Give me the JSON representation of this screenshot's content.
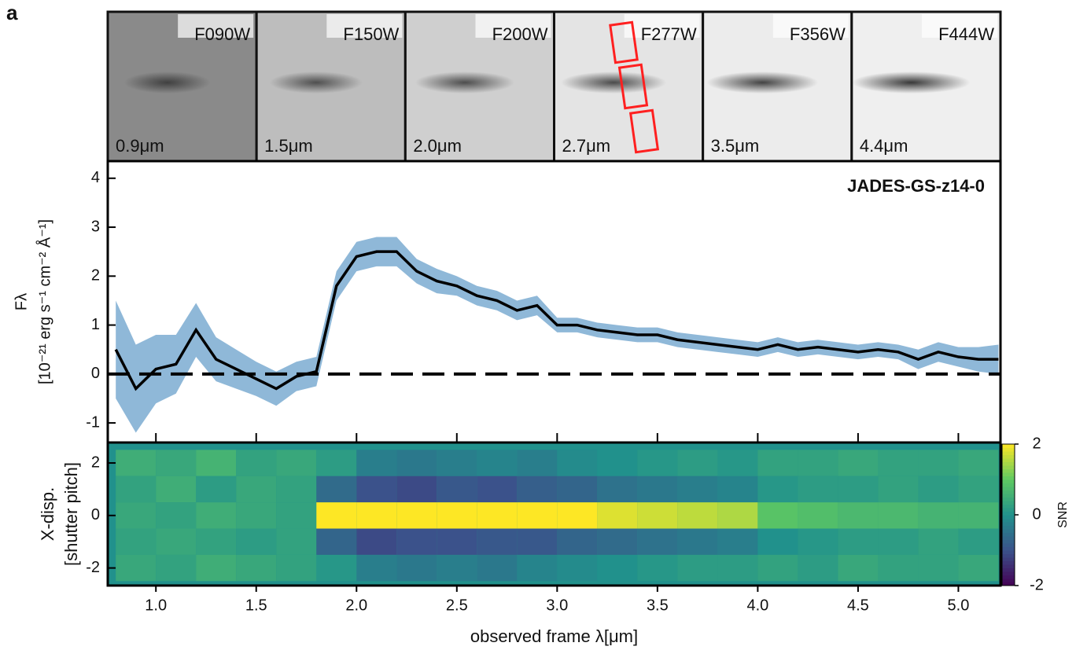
{
  "panel_label": "a",
  "images": [
    {
      "filter": "F090W",
      "wavelength": "0.9μm"
    },
    {
      "filter": "F150W",
      "wavelength": "1.5μm"
    },
    {
      "filter": "F200W",
      "wavelength": "2.0μm"
    },
    {
      "filter": "F277W",
      "wavelength": "2.7μm"
    },
    {
      "filter": "F356W",
      "wavelength": "3.5μm"
    },
    {
      "filter": "F444W",
      "wavelength": "4.4μm"
    }
  ],
  "chart_data": [
    {
      "type": "line",
      "title": "JADES-GS-z14-0",
      "ylabel": [
        "Fλ",
        "[10⁻²¹ erg s⁻¹ cm⁻² Å⁻¹]"
      ],
      "xlim": [
        0.76,
        5.21
      ],
      "ylim": [
        -1.4,
        4.35
      ],
      "yticks": [
        -1,
        0,
        1,
        2,
        3,
        4
      ],
      "x": [
        0.8,
        0.9,
        1.0,
        1.1,
        1.2,
        1.3,
        1.4,
        1.5,
        1.6,
        1.7,
        1.8,
        1.9,
        2.0,
        2.1,
        2.2,
        2.3,
        2.4,
        2.5,
        2.6,
        2.7,
        2.8,
        2.9,
        3.0,
        3.1,
        3.2,
        3.3,
        3.4,
        3.5,
        3.6,
        3.7,
        3.8,
        3.9,
        4.0,
        4.1,
        4.2,
        4.3,
        4.4,
        4.5,
        4.6,
        4.7,
        4.8,
        4.9,
        5.0,
        5.1,
        5.2
      ],
      "series": [
        {
          "color": "#000000",
          "values": [
            0.5,
            -0.3,
            0.1,
            0.2,
            0.9,
            0.3,
            0.1,
            -0.1,
            -0.3,
            -0.05,
            0.05,
            1.8,
            2.4,
            2.5,
            2.5,
            2.1,
            1.9,
            1.8,
            1.6,
            1.5,
            1.3,
            1.4,
            1.0,
            1.0,
            0.9,
            0.85,
            0.8,
            0.8,
            0.7,
            0.65,
            0.6,
            0.55,
            0.5,
            0.6,
            0.5,
            0.55,
            0.5,
            0.45,
            0.5,
            0.45,
            0.3,
            0.45,
            0.35,
            0.3,
            0.3
          ],
          "errors": [
            1.0,
            0.9,
            0.7,
            0.6,
            0.55,
            0.45,
            0.4,
            0.35,
            0.35,
            0.3,
            0.3,
            0.3,
            0.3,
            0.3,
            0.3,
            0.25,
            0.25,
            0.2,
            0.2,
            0.2,
            0.2,
            0.2,
            0.15,
            0.15,
            0.15,
            0.15,
            0.15,
            0.15,
            0.15,
            0.15,
            0.15,
            0.15,
            0.15,
            0.15,
            0.15,
            0.15,
            0.15,
            0.15,
            0.15,
            0.15,
            0.2,
            0.2,
            0.2,
            0.25,
            0.3
          ],
          "error_color": "#8fb8d8"
        }
      ],
      "zero_line": 0
    },
    {
      "type": "heatmap",
      "xlabel": "observed frame λ[μm]",
      "ylabel": [
        "X-disp.",
        "[shutter pitch]"
      ],
      "colorbar_label": "SNR",
      "xlim": [
        0.76,
        5.21
      ],
      "ylim": [
        -2.67,
        2.78
      ],
      "xticks": [
        {
          "value": 1,
          "label": "1.0"
        },
        1.5,
        {
          "value": 2,
          "label": "2.0"
        },
        2.5,
        {
          "value": 3,
          "label": "3.0"
        },
        3.5,
        {
          "value": 4,
          "label": "4.0"
        },
        4.5,
        {
          "value": 5,
          "label": "5.0"
        }
      ],
      "yticks": [
        -2,
        0,
        2
      ],
      "clim": [
        -2,
        2
      ],
      "cticks": [
        -2,
        0,
        2
      ],
      "rows": [
        2,
        1,
        0,
        -1,
        -2
      ],
      "columns": [
        0.9,
        1.1,
        1.3,
        1.5,
        1.7,
        1.9,
        2.1,
        2.3,
        2.5,
        2.7,
        2.9,
        3.1,
        3.3,
        3.5,
        3.7,
        3.9,
        4.1,
        4.3,
        4.5,
        4.7,
        4.9,
        5.1
      ],
      "snr": [
        [
          0.5,
          0.4,
          0.6,
          0.3,
          0.4,
          0.2,
          -0.3,
          -0.4,
          -0.3,
          -0.2,
          -0.3,
          -0.1,
          0.0,
          0.1,
          0.2,
          0.1,
          0.3,
          0.3,
          0.4,
          0.3,
          0.3,
          0.4
        ],
        [
          0.3,
          0.5,
          0.2,
          0.4,
          0.3,
          -0.6,
          -1.0,
          -1.1,
          -0.9,
          -1.0,
          -0.8,
          -0.7,
          -0.5,
          -0.4,
          -0.3,
          -0.2,
          0.1,
          0.2,
          0.2,
          0.3,
          0.2,
          0.3
        ],
        [
          0.4,
          0.3,
          0.5,
          0.4,
          0.3,
          2.0,
          2.0,
          2.0,
          2.0,
          2.0,
          2.0,
          2.0,
          1.8,
          1.7,
          1.6,
          1.5,
          0.9,
          0.8,
          0.7,
          0.7,
          0.6,
          0.6
        ],
        [
          0.3,
          0.4,
          0.3,
          0.2,
          0.3,
          -0.7,
          -1.1,
          -1.0,
          -1.0,
          -0.9,
          -0.9,
          -0.7,
          -0.6,
          -0.5,
          -0.4,
          -0.3,
          0.0,
          0.1,
          0.2,
          0.2,
          0.3,
          0.2
        ],
        [
          0.4,
          0.3,
          0.5,
          0.4,
          0.3,
          0.1,
          -0.3,
          -0.4,
          -0.3,
          -0.4,
          -0.2,
          -0.1,
          0.0,
          0.1,
          0.2,
          0.2,
          0.3,
          0.2,
          0.4,
          0.3,
          0.3,
          0.4
        ]
      ]
    }
  ]
}
